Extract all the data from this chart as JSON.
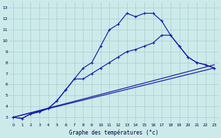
{
  "title": "Graphe des températures (°c)",
  "background_color": "#cceaea",
  "line_color": "#1a1aaa",
  "xlim": [
    -0.5,
    23.5
  ],
  "ylim": [
    2.5,
    13.5
  ],
  "xticks": [
    0,
    1,
    2,
    3,
    4,
    5,
    6,
    7,
    8,
    9,
    10,
    11,
    12,
    13,
    14,
    15,
    16,
    17,
    18,
    19,
    20,
    21,
    22,
    23
  ],
  "yticks": [
    3,
    4,
    5,
    6,
    7,
    8,
    9,
    10,
    11,
    12,
    13
  ],
  "grid_color": "#aacccc",
  "line1_x": [
    0,
    1,
    2,
    3,
    4,
    5,
    6,
    7,
    8,
    9,
    10,
    11,
    12,
    13,
    14,
    15,
    16,
    17,
    18,
    19,
    20,
    21,
    22,
    23
  ],
  "line1_y": [
    3.0,
    2.9,
    3.3,
    3.5,
    3.8,
    4.5,
    5.5,
    6.5,
    7.5,
    8.0,
    9.5,
    11.0,
    11.5,
    12.5,
    12.2,
    12.5,
    12.5,
    11.8,
    10.5,
    9.5,
    8.5,
    8.0,
    7.8,
    7.5
  ],
  "line2_x": [
    0,
    1,
    2,
    3,
    4,
    5,
    6,
    7,
    8,
    9,
    10,
    11,
    12,
    13,
    14,
    15,
    16,
    17,
    18,
    19,
    20,
    21,
    22,
    23
  ],
  "line2_y": [
    3.0,
    2.9,
    3.3,
    3.5,
    3.8,
    4.5,
    5.5,
    6.5,
    6.5,
    7.0,
    7.5,
    8.0,
    8.5,
    9.0,
    9.2,
    9.5,
    9.8,
    10.5,
    10.5,
    9.5,
    8.5,
    8.0,
    7.8,
    7.5
  ],
  "line3_x": [
    0,
    23
  ],
  "line3_y": [
    3.0,
    7.5
  ],
  "line4_x": [
    0,
    23
  ],
  "line4_y": [
    3.0,
    7.8
  ]
}
